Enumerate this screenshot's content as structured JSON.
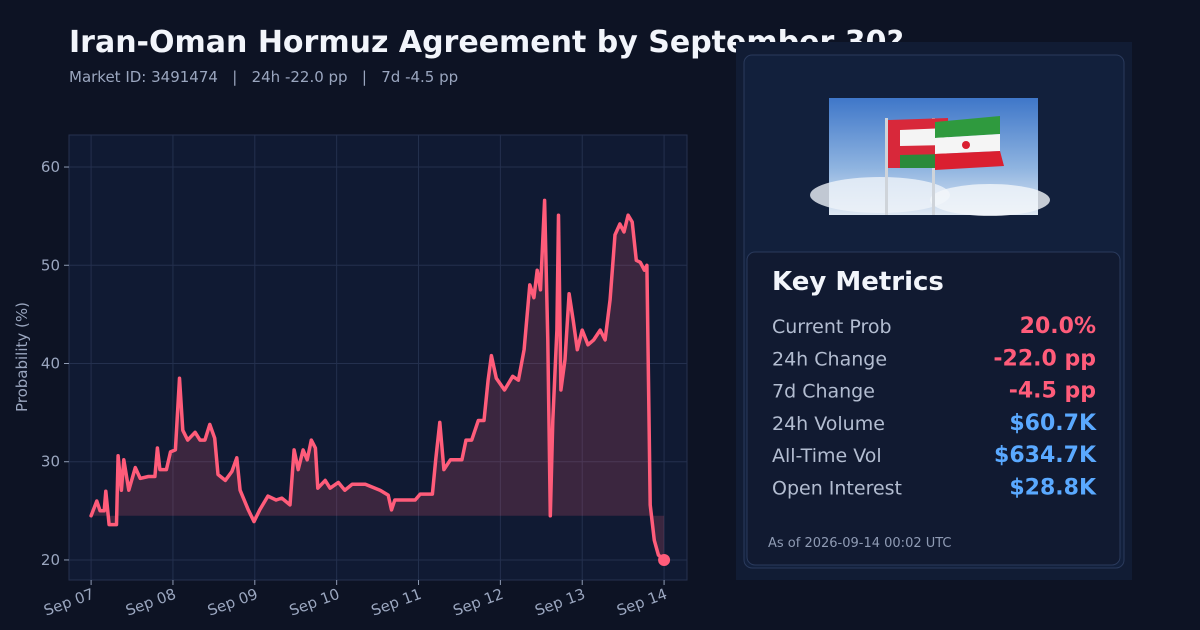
{
  "chart_data": {
    "type": "line",
    "title": "Iran-Oman Hormuz Agreement by September 30?",
    "subtitle": "Market ID: 3491474   |   24h -22.0 pp   |   7d -4.5 pp",
    "y_label": "Probability (%)",
    "color": "#ff5c7a",
    "x": [
      0,
      0.07,
      0.11,
      0.16,
      0.18,
      0.22,
      0.31,
      0.33,
      0.37,
      0.4,
      0.46,
      0.54,
      0.6,
      0.7,
      0.78,
      0.81,
      0.84,
      0.92,
      0.97,
      1.03,
      1.08,
      1.12,
      1.18,
      1.27,
      1.33,
      1.39,
      1.45,
      1.51,
      1.55,
      1.64,
      1.72,
      1.78,
      1.82,
      1.92,
      1.99,
      2.06,
      2.16,
      2.26,
      2.33,
      2.43,
      2.48,
      2.53,
      2.59,
      2.64,
      2.69,
      2.74,
      2.77,
      2.86,
      2.92,
      3.02,
      3.1,
      3.19,
      3.35,
      3.53,
      3.63,
      3.67,
      3.71,
      3.84,
      3.96,
      4.02,
      4.17,
      4.21,
      4.26,
      4.31,
      4.39,
      4.53,
      4.58,
      4.65,
      4.73,
      4.8,
      4.85,
      4.89,
      4.95,
      5.05,
      5.15,
      5.22,
      5.29,
      5.36,
      5.41,
      5.45,
      5.49,
      5.54,
      5.58,
      5.61,
      5.64,
      5.69,
      5.71,
      5.74,
      5.79,
      5.84,
      5.89,
      5.94,
      6.0,
      6.07,
      6.14,
      6.22,
      6.28,
      6.34,
      6.4,
      6.46,
      6.51,
      6.56,
      6.61,
      6.66,
      6.71,
      6.76,
      6.79,
      6.83,
      6.88,
      6.93,
      7.0
    ],
    "values": [
      24.5,
      26,
      25,
      25,
      27,
      23.6,
      23.6,
      30.6,
      27.1,
      30.2,
      27.1,
      29.4,
      28.3,
      28.5,
      28.5,
      31.4,
      29.2,
      29.2,
      31,
      31.2,
      38.5,
      33.2,
      32.2,
      33,
      32.2,
      32.2,
      33.8,
      32.4,
      28.7,
      28.1,
      29,
      30.4,
      27.1,
      25.1,
      23.9,
      25.1,
      26.5,
      26.1,
      26.3,
      25.6,
      31.2,
      29.2,
      31.2,
      30.2,
      32.2,
      31.4,
      27.3,
      28.1,
      27.3,
      27.9,
      27.1,
      27.7,
      27.7,
      27.1,
      26.6,
      25.1,
      26.1,
      26.1,
      26.1,
      26.7,
      26.7,
      30.2,
      34,
      29.2,
      30.2,
      30.2,
      32.2,
      32.2,
      34.2,
      34.2,
      38.3,
      40.8,
      38.5,
      37.3,
      38.7,
      38.3,
      41.4,
      48,
      46.7,
      49.5,
      47.5,
      56.6,
      42.4,
      24.5,
      34.2,
      43.4,
      55.1,
      37.3,
      40.4,
      47.1,
      44.4,
      41.4,
      43.4,
      41.9,
      42.4,
      43.4,
      42.4,
      46.5,
      53.1,
      54.2,
      53.4,
      55.1,
      54.4,
      50.5,
      50.3,
      49.5,
      50,
      25.6,
      22,
      20.5,
      20
    ],
    "xlim": [
      -0.27,
      7.28
    ],
    "xticks": [
      {
        "value": 0,
        "label": "Sep 07"
      },
      {
        "value": 1,
        "label": "Sep 08"
      },
      {
        "value": 2,
        "label": "Sep 09"
      },
      {
        "value": 3,
        "label": "Sep 10"
      },
      {
        "value": 4,
        "label": "Sep 11"
      },
      {
        "value": 5,
        "label": "Sep 12"
      },
      {
        "value": 6,
        "label": "Sep 13"
      },
      {
        "value": 7,
        "label": "Sep 14"
      }
    ],
    "ylim": [
      17.96,
      63.26
    ],
    "yticks": [
      20,
      30,
      40,
      50,
      60
    ],
    "grid": true
  },
  "panel": {
    "heading": "Key Metrics",
    "metrics": [
      {
        "label": "Current Prob",
        "value": "20.0%",
        "color": "#ff5c7a"
      },
      {
        "label": "24h Change",
        "value": "-22.0 pp",
        "color": "#ff5c7a"
      },
      {
        "label": "7d Change",
        "value": "-4.5 pp",
        "color": "#ff5c7a"
      },
      {
        "label": "24h Volume",
        "value": "$60.7K",
        "color": "#5aa9ff"
      },
      {
        "label": "All-Time Vol",
        "value": "$634.7K",
        "color": "#5aa9ff"
      },
      {
        "label": "Open Interest",
        "value": "$28.8K",
        "color": "#5aa9ff"
      }
    ],
    "footnote": "As of 2026-09-14 00:02 UTC"
  }
}
